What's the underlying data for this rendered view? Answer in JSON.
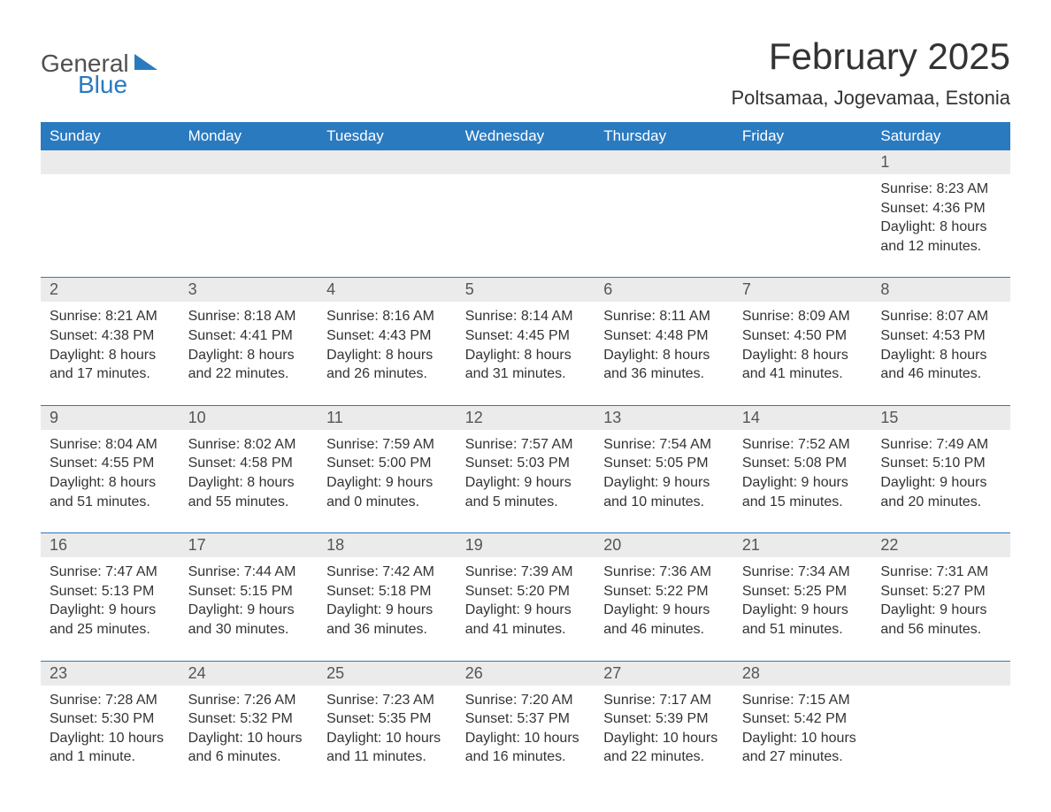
{
  "logo": {
    "word1": "General",
    "word2": "Blue",
    "color_general": "#505050",
    "color_blue": "#2a7ac0"
  },
  "title": "February 2025",
  "location": "Poltsamaa, Jogevamaa, Estonia",
  "colors": {
    "header_bg": "#2a7ac0",
    "header_text": "#ffffff",
    "daynum_bg": "#ebebeb",
    "rule": "#2a7ac0",
    "text": "#333333",
    "background": "#ffffff"
  },
  "fonts": {
    "title_size": 42,
    "location_size": 22,
    "header_size": 17,
    "daynum_size": 18,
    "body_size": 16
  },
  "weekdays": [
    "Sunday",
    "Monday",
    "Tuesday",
    "Wednesday",
    "Thursday",
    "Friday",
    "Saturday"
  ],
  "weeks": [
    [
      null,
      null,
      null,
      null,
      null,
      null,
      {
        "day": "1",
        "sunrise": "Sunrise: 8:23 AM",
        "sunset": "Sunset: 4:36 PM",
        "dl1": "Daylight: 8 hours",
        "dl2": "and 12 minutes."
      }
    ],
    [
      {
        "day": "2",
        "sunrise": "Sunrise: 8:21 AM",
        "sunset": "Sunset: 4:38 PM",
        "dl1": "Daylight: 8 hours",
        "dl2": "and 17 minutes."
      },
      {
        "day": "3",
        "sunrise": "Sunrise: 8:18 AM",
        "sunset": "Sunset: 4:41 PM",
        "dl1": "Daylight: 8 hours",
        "dl2": "and 22 minutes."
      },
      {
        "day": "4",
        "sunrise": "Sunrise: 8:16 AM",
        "sunset": "Sunset: 4:43 PM",
        "dl1": "Daylight: 8 hours",
        "dl2": "and 26 minutes."
      },
      {
        "day": "5",
        "sunrise": "Sunrise: 8:14 AM",
        "sunset": "Sunset: 4:45 PM",
        "dl1": "Daylight: 8 hours",
        "dl2": "and 31 minutes."
      },
      {
        "day": "6",
        "sunrise": "Sunrise: 8:11 AM",
        "sunset": "Sunset: 4:48 PM",
        "dl1": "Daylight: 8 hours",
        "dl2": "and 36 minutes."
      },
      {
        "day": "7",
        "sunrise": "Sunrise: 8:09 AM",
        "sunset": "Sunset: 4:50 PM",
        "dl1": "Daylight: 8 hours",
        "dl2": "and 41 minutes."
      },
      {
        "day": "8",
        "sunrise": "Sunrise: 8:07 AM",
        "sunset": "Sunset: 4:53 PM",
        "dl1": "Daylight: 8 hours",
        "dl2": "and 46 minutes."
      }
    ],
    [
      {
        "day": "9",
        "sunrise": "Sunrise: 8:04 AM",
        "sunset": "Sunset: 4:55 PM",
        "dl1": "Daylight: 8 hours",
        "dl2": "and 51 minutes."
      },
      {
        "day": "10",
        "sunrise": "Sunrise: 8:02 AM",
        "sunset": "Sunset: 4:58 PM",
        "dl1": "Daylight: 8 hours",
        "dl2": "and 55 minutes."
      },
      {
        "day": "11",
        "sunrise": "Sunrise: 7:59 AM",
        "sunset": "Sunset: 5:00 PM",
        "dl1": "Daylight: 9 hours",
        "dl2": "and 0 minutes."
      },
      {
        "day": "12",
        "sunrise": "Sunrise: 7:57 AM",
        "sunset": "Sunset: 5:03 PM",
        "dl1": "Daylight: 9 hours",
        "dl2": "and 5 minutes."
      },
      {
        "day": "13",
        "sunrise": "Sunrise: 7:54 AM",
        "sunset": "Sunset: 5:05 PM",
        "dl1": "Daylight: 9 hours",
        "dl2": "and 10 minutes."
      },
      {
        "day": "14",
        "sunrise": "Sunrise: 7:52 AM",
        "sunset": "Sunset: 5:08 PM",
        "dl1": "Daylight: 9 hours",
        "dl2": "and 15 minutes."
      },
      {
        "day": "15",
        "sunrise": "Sunrise: 7:49 AM",
        "sunset": "Sunset: 5:10 PM",
        "dl1": "Daylight: 9 hours",
        "dl2": "and 20 minutes."
      }
    ],
    [
      {
        "day": "16",
        "sunrise": "Sunrise: 7:47 AM",
        "sunset": "Sunset: 5:13 PM",
        "dl1": "Daylight: 9 hours",
        "dl2": "and 25 minutes."
      },
      {
        "day": "17",
        "sunrise": "Sunrise: 7:44 AM",
        "sunset": "Sunset: 5:15 PM",
        "dl1": "Daylight: 9 hours",
        "dl2": "and 30 minutes."
      },
      {
        "day": "18",
        "sunrise": "Sunrise: 7:42 AM",
        "sunset": "Sunset: 5:18 PM",
        "dl1": "Daylight: 9 hours",
        "dl2": "and 36 minutes."
      },
      {
        "day": "19",
        "sunrise": "Sunrise: 7:39 AM",
        "sunset": "Sunset: 5:20 PM",
        "dl1": "Daylight: 9 hours",
        "dl2": "and 41 minutes."
      },
      {
        "day": "20",
        "sunrise": "Sunrise: 7:36 AM",
        "sunset": "Sunset: 5:22 PM",
        "dl1": "Daylight: 9 hours",
        "dl2": "and 46 minutes."
      },
      {
        "day": "21",
        "sunrise": "Sunrise: 7:34 AM",
        "sunset": "Sunset: 5:25 PM",
        "dl1": "Daylight: 9 hours",
        "dl2": "and 51 minutes."
      },
      {
        "day": "22",
        "sunrise": "Sunrise: 7:31 AM",
        "sunset": "Sunset: 5:27 PM",
        "dl1": "Daylight: 9 hours",
        "dl2": "and 56 minutes."
      }
    ],
    [
      {
        "day": "23",
        "sunrise": "Sunrise: 7:28 AM",
        "sunset": "Sunset: 5:30 PM",
        "dl1": "Daylight: 10 hours",
        "dl2": "and 1 minute."
      },
      {
        "day": "24",
        "sunrise": "Sunrise: 7:26 AM",
        "sunset": "Sunset: 5:32 PM",
        "dl1": "Daylight: 10 hours",
        "dl2": "and 6 minutes."
      },
      {
        "day": "25",
        "sunrise": "Sunrise: 7:23 AM",
        "sunset": "Sunset: 5:35 PM",
        "dl1": "Daylight: 10 hours",
        "dl2": "and 11 minutes."
      },
      {
        "day": "26",
        "sunrise": "Sunrise: 7:20 AM",
        "sunset": "Sunset: 5:37 PM",
        "dl1": "Daylight: 10 hours",
        "dl2": "and 16 minutes."
      },
      {
        "day": "27",
        "sunrise": "Sunrise: 7:17 AM",
        "sunset": "Sunset: 5:39 PM",
        "dl1": "Daylight: 10 hours",
        "dl2": "and 22 minutes."
      },
      {
        "day": "28",
        "sunrise": "Sunrise: 7:15 AM",
        "sunset": "Sunset: 5:42 PM",
        "dl1": "Daylight: 10 hours",
        "dl2": "and 27 minutes."
      },
      null
    ]
  ]
}
